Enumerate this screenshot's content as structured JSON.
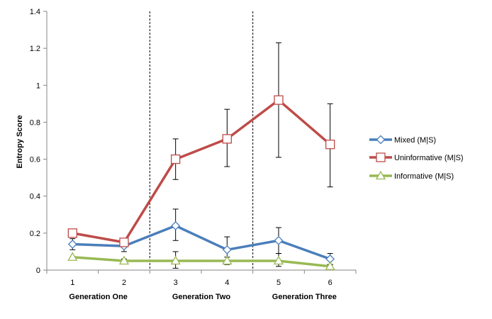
{
  "chart_data": {
    "type": "line",
    "title": "",
    "ylabel": "Entropy Score",
    "xlabel": "",
    "x": [
      1,
      2,
      3,
      4,
      5,
      6
    ],
    "ylim": [
      0,
      1.4
    ],
    "yticks": [
      0,
      0.2,
      0.4,
      0.6,
      0.8,
      1,
      1.2,
      1.4
    ],
    "ytick_labels": [
      "0",
      "0.2",
      "0.4",
      "0.6",
      "0.8",
      "1",
      "1.2",
      "1.4"
    ],
    "grid": false,
    "legend_position": "right",
    "groups": [
      {
        "label": "Generation One",
        "x_center": 1.5
      },
      {
        "label": "Generation Two",
        "x_center": 3.5
      },
      {
        "label": "Generation Three",
        "x_center": 5.5
      }
    ],
    "dividers_x": [
      2.5,
      4.5
    ],
    "series": [
      {
        "name": "Mixed (M|S)",
        "color": "#4a7ebb",
        "marker": "diamond",
        "values": [
          0.14,
          0.13,
          0.24,
          0.11,
          0.16,
          0.06
        ],
        "err_low": [
          0.11,
          0.1,
          0.16,
          0.05,
          0.09,
          0.03
        ],
        "err_high": [
          0.17,
          0.16,
          0.33,
          0.18,
          0.23,
          0.09
        ]
      },
      {
        "name": "Uninformative (M|S)",
        "color": "#be4b48",
        "marker": "square",
        "values": [
          0.2,
          0.15,
          0.6,
          0.71,
          0.92,
          0.68
        ],
        "err_low": [
          0.2,
          0.13,
          0.49,
          0.56,
          0.61,
          0.45
        ],
        "err_high": [
          0.2,
          0.17,
          0.71,
          0.87,
          1.23,
          0.9
        ]
      },
      {
        "name": "Informative (M|S)",
        "color": "#98b954",
        "marker": "triangle",
        "values": [
          0.07,
          0.05,
          0.05,
          0.05,
          0.05,
          0.02
        ],
        "err_low": [
          0.07,
          0.04,
          0.01,
          0.03,
          0.02,
          0.01
        ],
        "err_high": [
          0.07,
          0.06,
          0.1,
          0.07,
          0.09,
          0.03
        ]
      }
    ]
  }
}
